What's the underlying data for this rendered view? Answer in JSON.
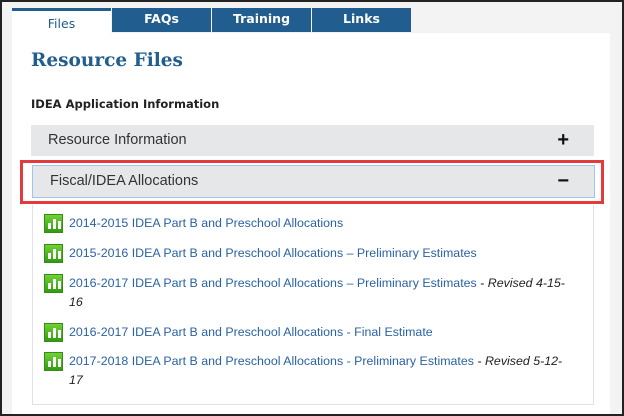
{
  "tabs": [
    {
      "label": "Files",
      "active": true
    },
    {
      "label": "FAQs"
    },
    {
      "label": "Training"
    },
    {
      "label": "Links"
    }
  ],
  "page_title": "Resource Files",
  "section_title": "IDEA Application Information",
  "accordions": [
    {
      "label": "Resource Information",
      "icon": "plus-icon",
      "symbol": "+",
      "expanded": false
    },
    {
      "label": "Fiscal/IDEA Allocations",
      "icon": "minus-icon",
      "symbol": "−",
      "expanded": true,
      "highlighted": true
    }
  ],
  "files": [
    {
      "title": "2014-2015 IDEA Part B and Preschool Allocations",
      "note": ""
    },
    {
      "title": "2015-2016 IDEA Part B and Preschool Allocations – Preliminary Estimates",
      "note": ""
    },
    {
      "title": "2016-2017 IDEA Part B and Preschool Allocations – Preliminary Estimates",
      "sep": " - ",
      "note": "Revised 4-15-16"
    },
    {
      "title": "2016-2017 IDEA Part B and Preschool Allocations - Final Estimate",
      "note": ""
    },
    {
      "title": "2017-2018 IDEA Part B and Preschool Allocations - Preliminary Estimates",
      "sep": " - ",
      "note": "Revised 5-12-17"
    }
  ],
  "colors": {
    "brand": "#215d8f",
    "highlight": "#e33b3b",
    "file_icon": "#3fae16"
  }
}
